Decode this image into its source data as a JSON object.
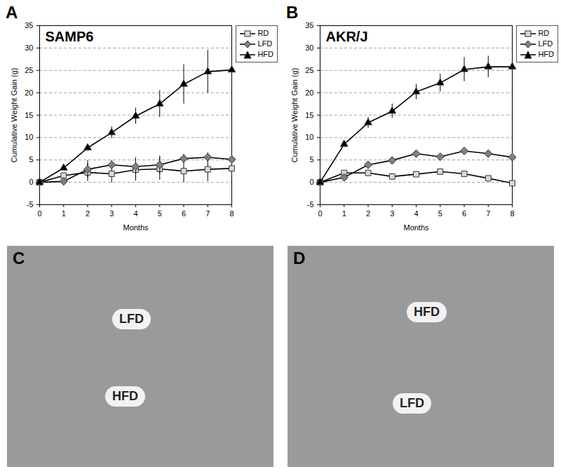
{
  "chart_data": [
    {
      "type": "line",
      "panel": "A",
      "title": "SAMP6",
      "x_label": "Months",
      "y_label": "Cumulative Weight Gain (g)",
      "x": [
        0,
        1,
        2,
        3,
        4,
        5,
        6,
        7,
        8
      ],
      "series": [
        {
          "name": "RD",
          "color": "#d9d9d9",
          "marker": "square",
          "values": [
            0,
            1.5,
            2.2,
            1.9,
            2.8,
            3.0,
            2.5,
            2.9,
            3.1
          ],
          "errors": [
            0,
            0.5,
            2.0,
            2.0,
            2.5,
            2.5,
            2.5,
            2.7,
            3.0
          ]
        },
        {
          "name": "LFD",
          "color": "#808080",
          "marker": "diamond",
          "values": [
            0,
            0.2,
            2.9,
            3.9,
            3.5,
            3.9,
            5.3,
            5.6,
            5.1
          ],
          "errors": [
            0,
            0.4,
            2.0,
            1.0,
            2.0,
            2.0,
            1.0,
            1.0,
            0.8
          ]
        },
        {
          "name": "HFD",
          "color": "#000000",
          "marker": "triangle",
          "values": [
            0,
            3.2,
            7.7,
            11.1,
            14.8,
            17.5,
            21.9,
            24.7,
            25.1
          ],
          "errors": [
            0,
            0.5,
            0.7,
            1.3,
            1.8,
            3.0,
            4.4,
            4.8,
            5.0
          ]
        }
      ],
      "xlim": [
        0,
        8
      ],
      "xticks": [
        0,
        1,
        2,
        3,
        4,
        5,
        6,
        7,
        8
      ],
      "ylim": [
        -5,
        35
      ],
      "yticks": [
        -5,
        0,
        5,
        10,
        15,
        20,
        25,
        30,
        35
      ],
      "grid": true,
      "legend": "top-right"
    },
    {
      "type": "line",
      "panel": "B",
      "title": "AKR/J",
      "x_label": "Months",
      "y_label": "Cumulative Weight Gain (g)",
      "x": [
        0,
        1,
        2,
        3,
        4,
        5,
        6,
        7,
        8
      ],
      "series": [
        {
          "name": "RD",
          "color": "#d9d9d9",
          "marker": "square",
          "values": [
            0,
            2.1,
            2.1,
            1.3,
            1.8,
            2.4,
            1.9,
            0.9,
            -0.2
          ],
          "errors": [
            0,
            0.3,
            0.4,
            0.4,
            0.4,
            0.4,
            0.4,
            0.4,
            0.5
          ]
        },
        {
          "name": "LFD",
          "color": "#808080",
          "marker": "diamond",
          "values": [
            0,
            1.1,
            3.9,
            4.9,
            6.4,
            5.7,
            7.0,
            6.4,
            5.6
          ],
          "errors": [
            0,
            0.3,
            0.4,
            0.4,
            0.5,
            0.5,
            0.5,
            0.5,
            0.5
          ]
        },
        {
          "name": "HFD",
          "color": "#000000",
          "marker": "triangle",
          "values": [
            0,
            8.5,
            13.3,
            15.9,
            20.2,
            22.2,
            25.2,
            25.8,
            25.8
          ],
          "errors": [
            0,
            0.7,
            1.2,
            1.6,
            1.7,
            2.0,
            2.7,
            2.4,
            2.7
          ]
        }
      ],
      "xlim": [
        0,
        8
      ],
      "xticks": [
        0,
        1,
        2,
        3,
        4,
        5,
        6,
        7,
        8
      ],
      "ylim": [
        -5,
        35
      ],
      "yticks": [
        -5,
        0,
        5,
        10,
        15,
        20,
        25,
        30,
        35
      ],
      "grid": true,
      "legend": "top-right"
    }
  ],
  "photos": [
    {
      "panel": "C",
      "labels": [
        "LFD",
        "HFD"
      ]
    },
    {
      "panel": "D",
      "labels": [
        "HFD",
        "LFD"
      ]
    }
  ]
}
